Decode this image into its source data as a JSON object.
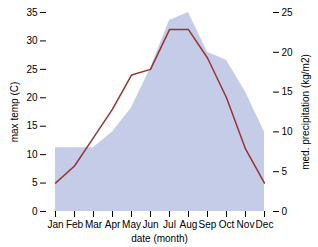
{
  "chart_data": {
    "type": "line",
    "xlabel": "date (month)",
    "ylabel": "max temp (C)",
    "y2label": "med. precipitation (kg/m2)",
    "categories": [
      "Jan",
      "Feb",
      "Mar",
      "Apr",
      "May",
      "Jun",
      "Jul",
      "Aug",
      "Sep",
      "Oct",
      "Nov",
      "Dec"
    ],
    "series": [
      {
        "type": "area",
        "axis": "y2",
        "color": "#c5cce8",
        "values": [
          8,
          8,
          8,
          10,
          13,
          18,
          24,
          25,
          20,
          19,
          15,
          10
        ]
      },
      {
        "type": "line",
        "color": "#993333",
        "values": [
          5,
          8,
          13,
          18,
          24,
          25,
          32,
          32,
          27,
          20,
          11,
          5
        ]
      }
    ],
    "ylim": [
      0,
      35
    ],
    "yticks": [
      0,
      5,
      10,
      15,
      20,
      25,
      30,
      35
    ],
    "y2lim": [
      0,
      25
    ],
    "y2ticks": [
      0,
      5,
      10,
      15,
      20,
      25
    ]
  }
}
